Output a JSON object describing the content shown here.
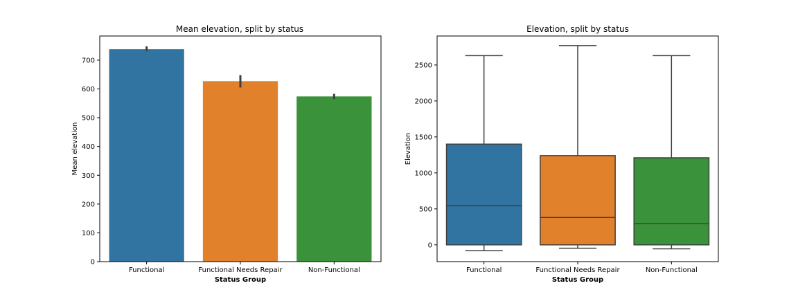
{
  "chart_data": [
    {
      "type": "bar",
      "title": "Mean elevation, split by status",
      "xlabel": "Status Group",
      "ylabel": "Mean elevation",
      "categories": [
        "Functional",
        "Functional Needs Repair",
        "Non-Functional"
      ],
      "values": [
        738,
        627,
        574
      ],
      "error_low": [
        731,
        605,
        565
      ],
      "error_high": [
        748,
        648,
        583
      ],
      "colors": [
        "#3274a1",
        "#e1812c",
        "#3a923a"
      ],
      "ylim": [
        0,
        784
      ],
      "yticks": [
        0,
        100,
        200,
        300,
        400,
        500,
        600,
        700
      ],
      "grid": false
    },
    {
      "type": "box",
      "title": "Elevation, split by status",
      "xlabel": "Status Group",
      "ylabel": "Elevation",
      "categories": [
        "Functional",
        "Functional Needs Repair",
        "Non-Functional"
      ],
      "boxes": [
        {
          "whisker_low": -81,
          "q1": 0,
          "median": 545,
          "q3": 1400,
          "whisker_high": 2630
        },
        {
          "whisker_low": -47,
          "q1": 0,
          "median": 380,
          "q3": 1240,
          "whisker_high": 2770
        },
        {
          "whisker_low": -55,
          "q1": 0,
          "median": 295,
          "q3": 1210,
          "whisker_high": 2630
        }
      ],
      "colors": [
        "#3274a1",
        "#e1812c",
        "#3a923a"
      ],
      "ylim": [
        -233,
        2903
      ],
      "yticks": [
        0,
        500,
        1000,
        1500,
        2000,
        2500
      ],
      "grid": false
    }
  ]
}
